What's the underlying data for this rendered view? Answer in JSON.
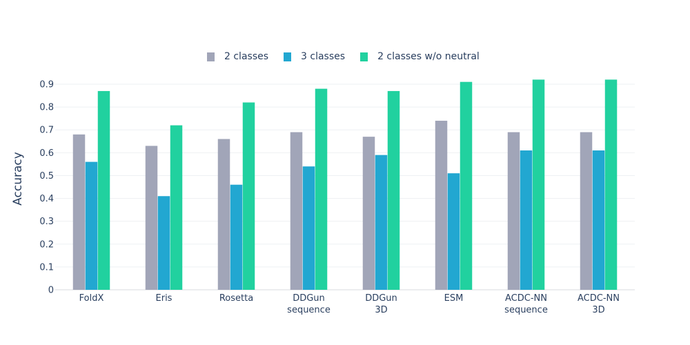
{
  "chart_data": {
    "type": "bar",
    "ylabel": "Accuracy",
    "xlabel": "",
    "ylim": [
      0,
      0.9
    ],
    "yticks": [
      "0",
      "0.1",
      "0.2",
      "0.3",
      "0.4",
      "0.5",
      "0.6",
      "0.7",
      "0.8",
      "0.9"
    ],
    "grid": true,
    "legend_position": "top-center",
    "categories": [
      [
        "FoldX"
      ],
      [
        "Eris"
      ],
      [
        "Rosetta"
      ],
      [
        "DDGun",
        "sequence"
      ],
      [
        "DDGun",
        "3D"
      ],
      [
        "ESM"
      ],
      [
        "ACDC-NN",
        "sequence"
      ],
      [
        "ACDC-NN",
        "3D"
      ]
    ],
    "series": [
      {
        "name": "2 classes",
        "color": "#a1a5b8",
        "values": [
          0.68,
          0.63,
          0.66,
          0.69,
          0.67,
          0.74,
          0.69,
          0.69
        ]
      },
      {
        "name": "3 classes",
        "color": "#22a7d1",
        "values": [
          0.56,
          0.41,
          0.46,
          0.54,
          0.59,
          0.51,
          0.61,
          0.61
        ]
      },
      {
        "name": "2 classes w/o neutral",
        "color": "#21d19f",
        "values": [
          0.87,
          0.72,
          0.82,
          0.88,
          0.87,
          0.91,
          0.92,
          0.92
        ]
      }
    ]
  }
}
